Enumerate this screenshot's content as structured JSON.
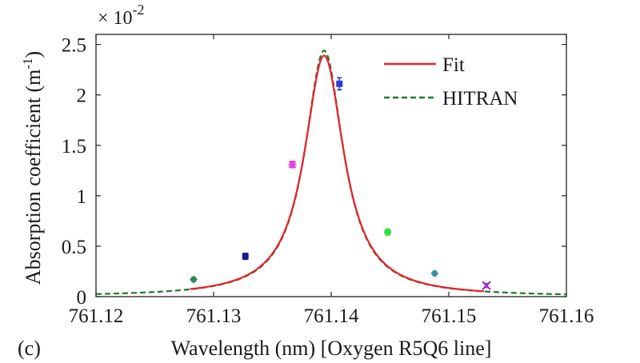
{
  "chart_data": {
    "type": "line",
    "panel_label": "(c)",
    "xlabel": "Wavelength (nm) [Oxygen R5Q6 line]",
    "ylabel_main": "Absorption coefficient (m",
    "ylabel_sup": "-1",
    "ylabel_close": ")",
    "y_multiplier_base": "× 10",
    "y_multiplier_exp": "-2",
    "xlim": [
      761.12,
      761.16
    ],
    "ylim": [
      0,
      2.6
    ],
    "x_ticks": [
      761.12,
      761.13,
      761.14,
      761.15,
      761.16
    ],
    "x_tick_labels": [
      "761.12",
      "761.13",
      "761.14",
      "761.15",
      "761.16"
    ],
    "y_ticks": [
      0,
      0.5,
      1,
      1.5,
      2,
      2.5
    ],
    "y_tick_labels": [
      "0",
      "0.5",
      "1",
      "1.5",
      "2",
      "2.5"
    ],
    "grid": false,
    "legend_position": "top-right",
    "series": [
      {
        "name": "Fit",
        "color": "#e8202a",
        "style": "solid",
        "x_range": [
          761.128,
          761.153
        ],
        "center": 761.1394,
        "peak": 2.39,
        "hwhm": 0.00205
      },
      {
        "name": "HITRAN",
        "color": "#1f7a2a",
        "style": "dashed",
        "x_range": [
          761.12,
          761.16
        ],
        "center": 761.1394,
        "peak": 2.44,
        "hwhm": 0.002
      }
    ],
    "measurements": [
      {
        "x": 761.1283,
        "y": 0.17,
        "err": 0.02,
        "color": "#2f8a5a",
        "marker": "diamond"
      },
      {
        "x": 761.1327,
        "y": 0.4,
        "err": 0.03,
        "color": "#1a1a8c",
        "marker": "square"
      },
      {
        "x": 761.1367,
        "y": 1.31,
        "err": 0.03,
        "color": "#e040e0",
        "marker": "star"
      },
      {
        "x": 761.1407,
        "y": 2.11,
        "err": 0.06,
        "color": "#2a3ad8",
        "marker": "square"
      },
      {
        "x": 761.1448,
        "y": 0.64,
        "err": 0.03,
        "color": "#30e040",
        "marker": "circle"
      },
      {
        "x": 761.1488,
        "y": 0.23,
        "err": 0.02,
        "color": "#3a8fb0",
        "marker": "diamond"
      },
      {
        "x": 761.1532,
        "y": 0.11,
        "err": 0.02,
        "color": "#9a30d8",
        "marker": "x"
      }
    ]
  }
}
